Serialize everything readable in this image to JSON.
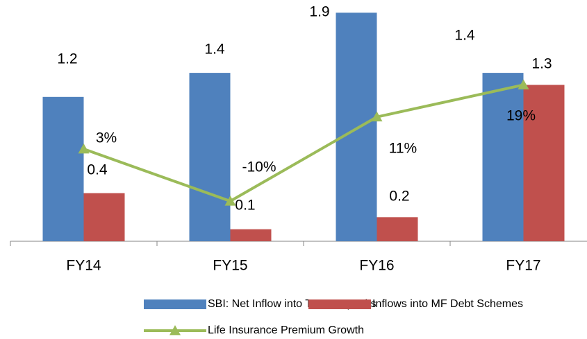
{
  "chart_data": {
    "type": "bar",
    "categories": [
      "FY14",
      "FY15",
      "FY16",
      "FY17"
    ],
    "series": [
      {
        "name": "SBI: Net Inflow into Term Deposits",
        "color": "#4f81bd",
        "type": "bar",
        "values": [
          1.2,
          1.4,
          1.9,
          1.4
        ]
      },
      {
        "name": "Inflows into MF Debt Schemes",
        "color": "#c0504d",
        "type": "bar",
        "values": [
          0.4,
          0.1,
          0.2,
          1.3
        ]
      },
      {
        "name": "Life Insurance Premium Growth",
        "color": "#9bbb59",
        "type": "line",
        "axis": "y2",
        "values": [
          3,
          -10,
          11,
          19
        ],
        "value_labels": [
          "3%",
          "-10%",
          "11%",
          "19%"
        ]
      }
    ],
    "ylim": [
      0,
      2
    ],
    "y2lim": [
      -20,
      40
    ],
    "grid": false,
    "legend": "bottom"
  }
}
